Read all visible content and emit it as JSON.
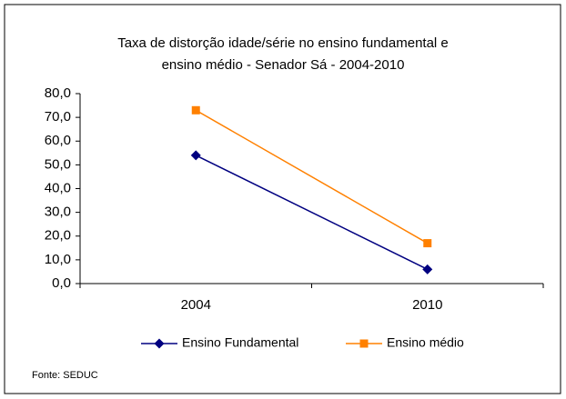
{
  "chart_data": {
    "type": "line",
    "title": [
      "Taxa de distorção idade/série no ensino fundamental e",
      "ensino médio - Senador Sá -  2004-2010"
    ],
    "categories": [
      "2004",
      "2010"
    ],
    "series": [
      {
        "name": "Ensino Fundamental",
        "color": "#000080",
        "marker": "diamond",
        "values": [
          54,
          6
        ]
      },
      {
        "name": "Ensino médio",
        "color": "#ff8000",
        "marker": "square",
        "values": [
          73,
          17
        ]
      }
    ],
    "ylim": [
      0,
      80
    ],
    "yticks": [
      {
        "value": 0,
        "label": "0,0"
      },
      {
        "value": 10,
        "label": "10,0"
      },
      {
        "value": 20,
        "label": "20,0"
      },
      {
        "value": 30,
        "label": "30,0"
      },
      {
        "value": 40,
        "label": "40,0"
      },
      {
        "value": 50,
        "label": "50,0"
      },
      {
        "value": 60,
        "label": "60,0"
      },
      {
        "value": 70,
        "label": "70,0"
      },
      {
        "value": 80,
        "label": "80,0"
      }
    ],
    "grid": false,
    "legend": "bottom",
    "source": "Fonte: SEDUC"
  }
}
